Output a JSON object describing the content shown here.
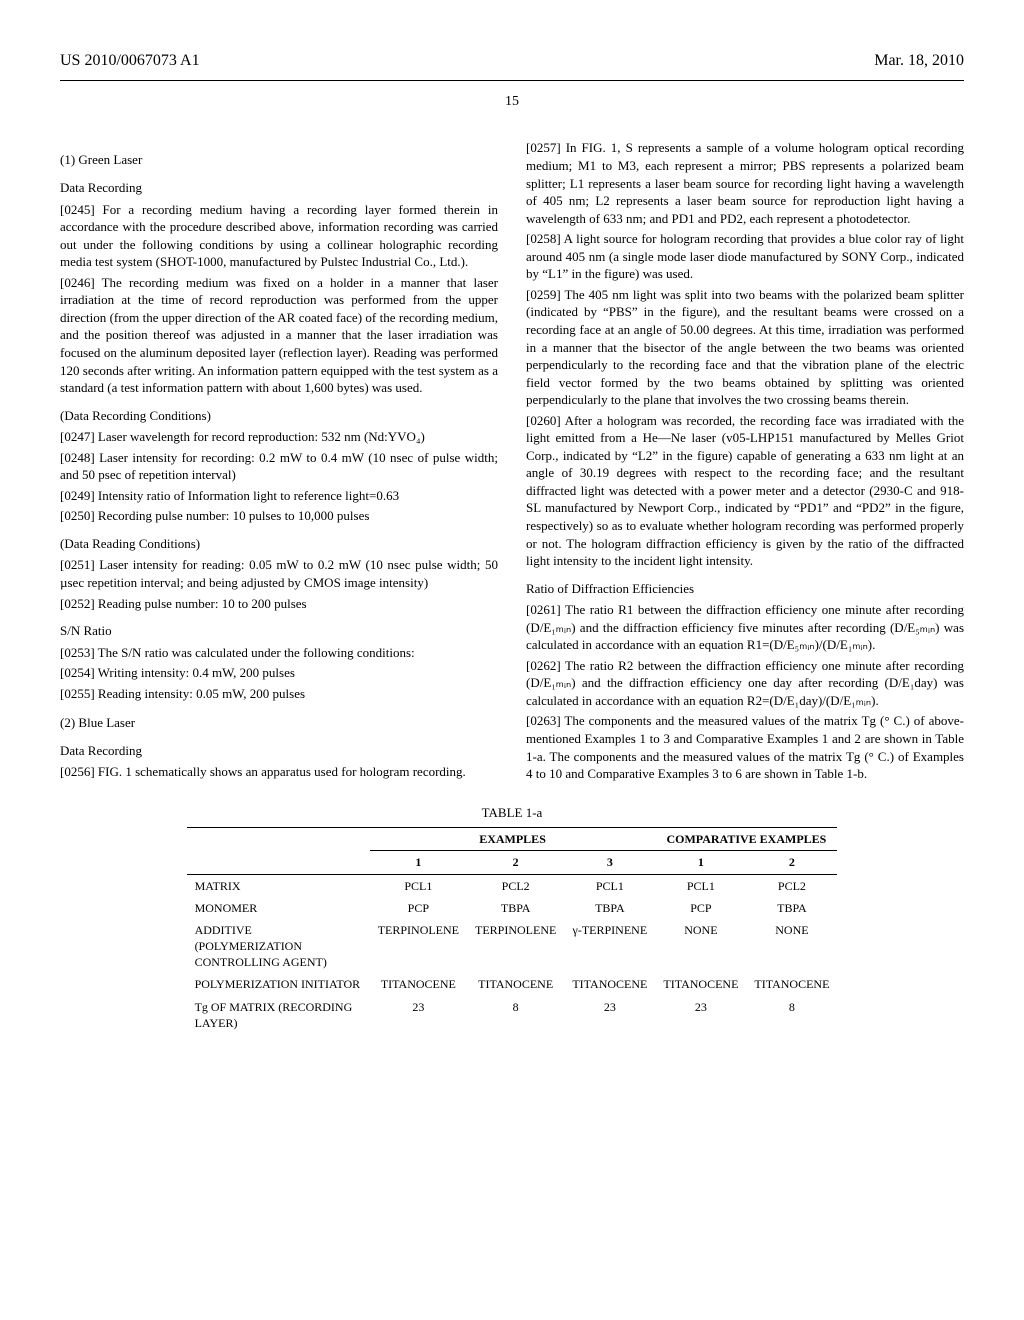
{
  "header": {
    "pubno": "US 2010/0067073 A1",
    "pubdate": "Mar. 18, 2010",
    "pagenum": "15"
  },
  "left": {
    "h1": "(1) Green Laser",
    "h2": "Data Recording",
    "p0245": "[0245]   For a recording medium having a recording layer formed therein in accordance with the procedure described above, information recording was carried out under the following conditions by using a collinear holographic recording media test system (SHOT-1000, manufactured by Pulstec Industrial Co., Ltd.).",
    "p0246": "[0246]   The recording medium was fixed on a holder in a manner that laser irradiation at the time of record reproduction was performed from the upper direction (from the upper direction of the AR coated face) of the recording medium, and the position thereof was adjusted in a manner that the laser irradiation was focused on the aluminum deposited layer (reflection layer). Reading was performed 120 seconds after writing. An information pattern equipped with the test system as a standard (a test information pattern with about 1,600 bytes) was used.",
    "h3": "(Data Recording Conditions)",
    "p0247": "[0247]   Laser wavelength for record reproduction: 532 nm (Nd:YVO₄)",
    "p0248": "[0248]   Laser intensity for recording: 0.2 mW to 0.4 mW (10 nsec of pulse width; and 50 psec of repetition interval)",
    "p0249": "[0249]   Intensity ratio of Information light to reference light=0.63",
    "p0250": "[0250]   Recording pulse number: 10 pulses to 10,000 pulses",
    "h4": "(Data Reading Conditions)",
    "p0251": "[0251]   Laser intensity for reading: 0.05 mW to 0.2 mW (10 nsec pulse width; 50 µsec repetition interval; and being adjusted by CMOS image intensity)",
    "p0252": "[0252]   Reading pulse number: 10 to 200 pulses",
    "h5": "S/N Ratio",
    "p0253": "[0253]   The S/N ratio was calculated under the following conditions:",
    "p0254": "[0254]   Writing intensity: 0.4 mW, 200 pulses",
    "p0255": "[0255]   Reading intensity: 0.05 mW, 200 pulses",
    "h6": "(2) Blue Laser",
    "h7": "Data Recording",
    "p0256": "[0256]   FIG. 1 schematically shows an apparatus used for hologram recording."
  },
  "right": {
    "p0257": "[0257]   In FIG. 1, S represents a sample of a volume hologram optical recording medium; M1 to M3, each represent a mirror; PBS represents a polarized beam splitter; L1 represents a laser beam source for recording light having a wavelength of 405 nm; L2 represents a laser beam source for reproduction light having a wavelength of 633 nm; and PD1 and PD2, each represent a photodetector.",
    "p0258": "[0258]   A light source for hologram recording that provides a blue color ray of light around 405 nm (a single mode laser diode manufactured by SONY Corp., indicated by “L1” in the figure) was used.",
    "p0259": "[0259]   The 405 nm light was split into two beams with the polarized beam splitter (indicated by “PBS” in the figure), and the resultant beams were crossed on a recording face at an angle of 50.00 degrees. At this time, irradiation was performed in a manner that the bisector of the angle between the two beams was oriented perpendicularly to the recording face and that the vibration plane of the electric field vector formed by the two beams obtained by splitting was oriented perpendicularly to the plane that involves the two crossing beams therein.",
    "p0260": "[0260]   After a hologram was recorded, the recording face was irradiated with the light emitted from a He—Ne laser (v05-LHP151 manufactured by Melles Griot Corp., indicated by “L2” in the figure) capable of generating a 633 nm light at an angle of 30.19 degrees with respect to the recording face; and the resultant diffracted light was detected with a power meter and a detector (2930-C and 918-SL manufactured by Newport Corp., indicated by “PD1” and “PD2” in the figure, respectively) so as to evaluate whether hologram recording was performed properly or not. The hologram diffraction efficiency is given by the ratio of the diffracted light intensity to the incident light intensity.",
    "h1": "Ratio of Diffraction Efficiencies",
    "p0261": "[0261]   The ratio R1 between the diffraction efficiency one minute after recording (D/E₁ₘᵢₙ) and the diffraction efficiency five minutes after recording (D/E₅ₘᵢₙ) was calculated in accordance with an equation R1=(D/E₅ₘᵢₙ)/(D/E₁ₘᵢₙ).",
    "p0262": "[0262]   The ratio R2 between the diffraction efficiency one minute after recording (D/E₁ₘᵢₙ) and the diffraction efficiency one day after recording (D/E₁day) was calculated in accordance with an equation R2=(D/E₁day)/(D/E₁ₘᵢₙ).",
    "p0263": "[0263]   The components and the measured values of the matrix Tg (° C.) of above-mentioned Examples 1 to 3 and Comparative Examples 1 and 2 are shown in Table 1-a. The components and the measured values of the matrix Tg (° C.) of Examples 4 to 10 and Comparative Examples 3 to 6 are shown in Table 1-b."
  },
  "table": {
    "caption": "TABLE 1-a",
    "group1": "EXAMPLES",
    "group2": "COMPARATIVE EXAMPLES",
    "cols_ex": [
      "1",
      "2",
      "3"
    ],
    "cols_ce": [
      "1",
      "2"
    ],
    "rows": [
      {
        "label": "MATRIX",
        "c": [
          "PCL1",
          "PCL2",
          "PCL1",
          "PCL1",
          "PCL2"
        ]
      },
      {
        "label": "MONOMER",
        "c": [
          "PCP",
          "TBPA",
          "TBPA",
          "PCP",
          "TBPA"
        ]
      },
      {
        "label": "ADDITIVE (POLYMERIZATION CONTROLLING AGENT)",
        "c": [
          "TERPINOLENE",
          "TERPINOLENE",
          "γ-TERPINENE",
          "NONE",
          "NONE"
        ]
      },
      {
        "label": "POLYMERIZATION INITIATOR",
        "c": [
          "TITANOCENE",
          "TITANOCENE",
          "TITANOCENE",
          "TITANOCENE",
          "TITANOCENE"
        ]
      },
      {
        "label": "Tg OF MATRIX (RECORDING LAYER)",
        "c": [
          "23",
          "8",
          "23",
          "23",
          "8"
        ]
      }
    ]
  }
}
